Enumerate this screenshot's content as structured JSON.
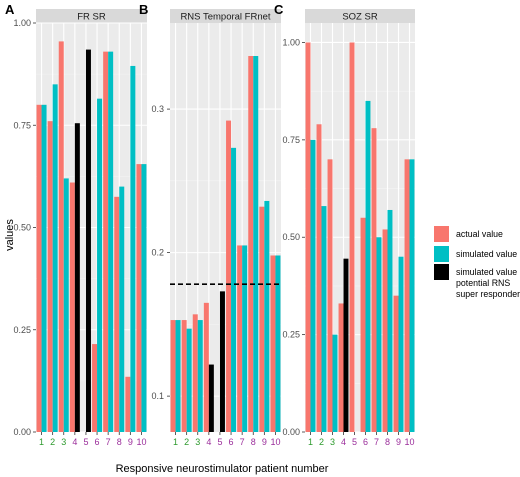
{
  "chart_data": {
    "type": "bar",
    "xlabel": "Responsive neurostimulator patient number",
    "ylabel": "values",
    "categories": [
      "1",
      "2",
      "3",
      "4",
      "5",
      "6",
      "7",
      "8",
      "9",
      "10"
    ],
    "category_colors": [
      "#2e9b2e",
      "#2e9b2e",
      "#2e9b2e",
      "#9b2e9b",
      "#9b2e9b",
      "#9b2e9b",
      "#9b2e9b",
      "#9b2e9b",
      "#9b2e9b",
      "#9b2e9b"
    ],
    "legend": [
      {
        "label": "actual value",
        "color": "#F8766D"
      },
      {
        "label": "simulated value",
        "color": "#00BFC4"
      },
      {
        "label": "simulated value potential RNS super responder",
        "color": "#000000"
      }
    ],
    "panels": [
      {
        "letter": "A",
        "title": "FR SR",
        "ylim": [
          0,
          1.0
        ],
        "yticks": [
          "0.00",
          "0.25",
          "0.50",
          "0.75",
          "1.00"
        ],
        "ytick_values": [
          0,
          0.25,
          0.5,
          0.75,
          1.0
        ],
        "series": [
          {
            "key": "actual",
            "values": [
              0.8,
              0.76,
              0.955,
              0.61,
              0,
              0.215,
              0.93,
              0.575,
              0.135,
              0.655
            ]
          },
          {
            "key": "simulated",
            "values": [
              0.8,
              0.85,
              0.62,
              0.755,
              0.935,
              0.815,
              0.93,
              0.6,
              0.895,
              0.655
            ]
          }
        ],
        "superresponders": [
          4,
          5
        ],
        "threshold": null
      },
      {
        "letter": "B",
        "title": "RNS Temporal FRnet",
        "ylim": [
          0.075,
          0.36
        ],
        "yticks": [
          "0.1",
          "0.2",
          "0.3"
        ],
        "ytick_values": [
          0.1,
          0.2,
          0.3
        ],
        "series": [
          {
            "key": "actual",
            "values": [
              0.153,
              0.153,
              0.157,
              0.165,
              0.075,
              0.292,
              0.205,
              0.337,
              0.232,
              0.198
            ]
          },
          {
            "key": "simulated",
            "values": [
              0.153,
              0.147,
              0.153,
              0.122,
              0.173,
              0.273,
              0.205,
              0.337,
              0.236,
              0.198
            ]
          }
        ],
        "superresponders": [
          4,
          5
        ],
        "threshold": 0.178
      },
      {
        "letter": "C",
        "title": "SOZ SR",
        "ylim": [
          0,
          1.05
        ],
        "yticks": [
          "0.00",
          "0.25",
          "0.50",
          "0.75",
          "1.00"
        ],
        "ytick_values": [
          0,
          0.25,
          0.5,
          0.75,
          1.0
        ],
        "series": [
          {
            "key": "actual",
            "values": [
              1.0,
              0.79,
              0.7,
              0.33,
              1.0,
              0.55,
              0.78,
              0.52,
              0.35,
              0.7
            ]
          },
          {
            "key": "simulated",
            "values": [
              0.75,
              0.58,
              0.25,
              0.445,
              0,
              0.85,
              0.5,
              0.57,
              0.45,
              0.7
            ]
          }
        ],
        "superresponders": [
          4
        ],
        "threshold": null
      }
    ]
  }
}
